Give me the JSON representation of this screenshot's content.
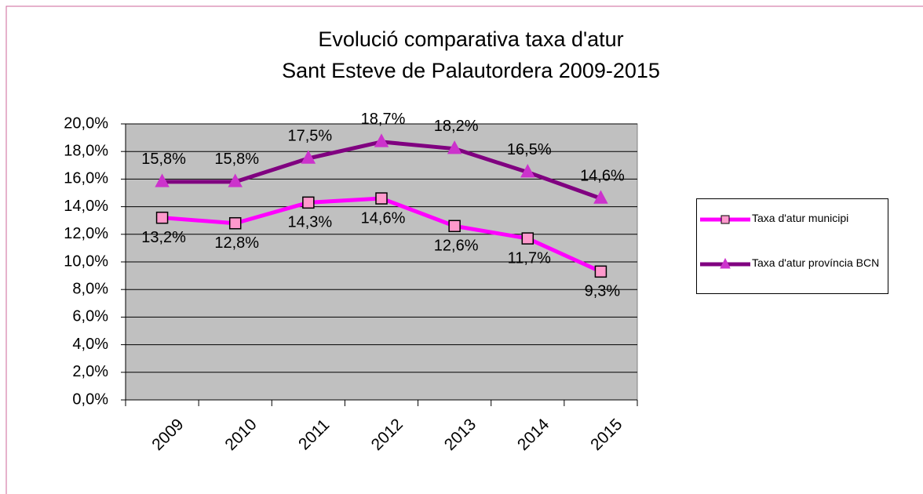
{
  "chart_data": {
    "type": "line",
    "title": [
      "Evolució comparativa taxa d'atur",
      "Sant Esteve de Palautordera 2009-2015"
    ],
    "categories": [
      "2009",
      "2010",
      "2011",
      "2012",
      "2013",
      "2014",
      "2015"
    ],
    "series": [
      {
        "name": "Taxa d'atur municipi",
        "color": "#ff00ff",
        "marker_color": "#ff99cc",
        "marker": "square",
        "values": [
          13.2,
          12.8,
          14.3,
          14.6,
          12.6,
          11.7,
          9.3
        ],
        "value_labels": [
          "13,2%",
          "12,8%",
          "14,3%",
          "14,6%",
          "12,6%",
          "11,7%",
          "9,3%"
        ]
      },
      {
        "name": "Taxa d'atur província BCN",
        "color": "#800080",
        "marker_color": "#cc33cc",
        "marker": "triangle",
        "values": [
          15.8,
          15.8,
          17.5,
          18.7,
          18.2,
          16.5,
          14.6
        ],
        "value_labels": [
          "15,8%",
          "15,8%",
          "17,5%",
          "18,7%",
          "18,2%",
          "16,5%",
          "14,6%"
        ]
      }
    ],
    "ylim": [
      0,
      20
    ],
    "yticks": [
      {
        "value": 0,
        "label": "0,0%"
      },
      {
        "value": 2,
        "label": "2,0%"
      },
      {
        "value": 4,
        "label": "4,0%"
      },
      {
        "value": 6,
        "label": "6,0%"
      },
      {
        "value": 8,
        "label": "8,0%"
      },
      {
        "value": 10,
        "label": "10,0%"
      },
      {
        "value": 12,
        "label": "12,0%"
      },
      {
        "value": 14,
        "label": "14,0%"
      },
      {
        "value": 16,
        "label": "16,0%"
      },
      {
        "value": 18,
        "label": "18,0%"
      },
      {
        "value": 20,
        "label": "20,0%"
      }
    ],
    "grid": true,
    "legend": "right"
  }
}
